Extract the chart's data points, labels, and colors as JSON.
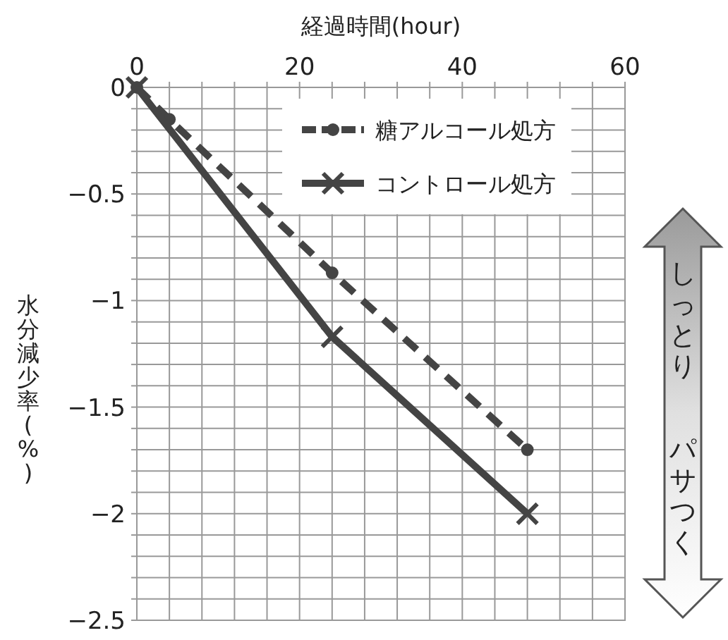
{
  "chart_data": {
    "type": "line",
    "xlabel": "経過時間(hour)",
    "ylabel": "水分減少率(%)",
    "xlim": [
      0,
      60
    ],
    "ylim": [
      -2.5,
      0
    ],
    "xticks": [
      0,
      {
        "value": 4,
        "label": null
      },
      {
        "value": 8,
        "label": null
      },
      {
        "value": 12,
        "label": null
      },
      {
        "value": 16,
        "label": null
      },
      20,
      {
        "value": 24,
        "label": null
      },
      {
        "value": 28,
        "label": null
      },
      {
        "value": 32,
        "label": null
      },
      {
        "value": 36,
        "label": null
      },
      40,
      {
        "value": 44,
        "label": null
      },
      {
        "value": 48,
        "label": null
      },
      {
        "value": 52,
        "label": null
      },
      {
        "value": 56,
        "label": null
      },
      60
    ],
    "yticks": [
      0,
      {
        "value": -0.1,
        "label": null
      },
      {
        "value": -0.2,
        "label": null
      },
      {
        "value": -0.3,
        "label": null
      },
      {
        "value": -0.4,
        "label": null
      },
      {
        "value": -0.5,
        "label": "−0.5"
      },
      {
        "value": -0.6,
        "label": null
      },
      {
        "value": -0.7,
        "label": null
      },
      {
        "value": -0.8,
        "label": null
      },
      {
        "value": -0.9,
        "label": null
      },
      {
        "value": -1,
        "label": "−1"
      },
      {
        "value": -1.1,
        "label": null
      },
      {
        "value": -1.2,
        "label": null
      },
      {
        "value": -1.3,
        "label": null
      },
      {
        "value": -1.4,
        "label": null
      },
      {
        "value": -1.5,
        "label": "−1.5"
      },
      {
        "value": -1.6,
        "label": null
      },
      {
        "value": -1.7,
        "label": null
      },
      {
        "value": -1.8,
        "label": null
      },
      {
        "value": -1.9,
        "label": null
      },
      {
        "value": -2,
        "label": "−2"
      },
      {
        "value": -2.1,
        "label": null
      },
      {
        "value": -2.2,
        "label": null
      },
      {
        "value": -2.3,
        "label": null
      },
      {
        "value": -2.4,
        "label": null
      },
      {
        "value": -2.5,
        "label": "−2.5"
      }
    ],
    "grid": true,
    "legend": "top right",
    "series": [
      {
        "name": "糖アルコール処方",
        "color": "#444444",
        "line_style": "dashed",
        "marker": "circle",
        "x": [
          0,
          4,
          24,
          48
        ],
        "values": [
          0,
          -0.15,
          -0.87,
          -1.7
        ]
      },
      {
        "name": "コントロール処方",
        "color": "#444444",
        "line_style": "solid",
        "marker": "cross",
        "x": [
          0,
          24,
          48
        ],
        "values": [
          0,
          -1.17,
          -2.0
        ]
      }
    ],
    "annotations": [
      "しっとり",
      "パサつく"
    ]
  }
}
